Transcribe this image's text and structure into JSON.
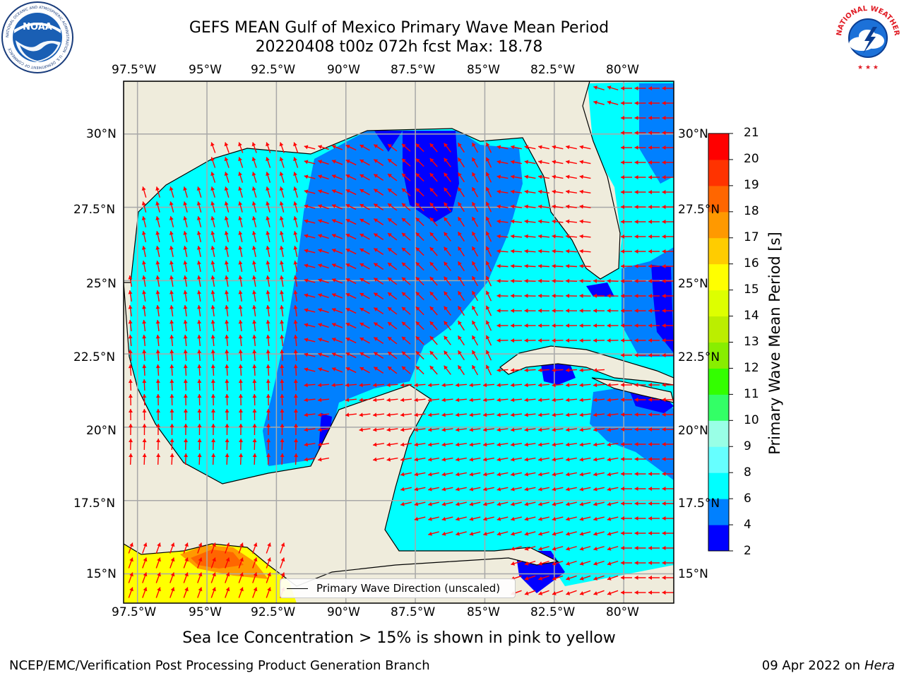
{
  "title": {
    "line1": "GEFS MEAN Gulf of Mexico Primary Wave Mean Period",
    "line2": "20220408 t00z 072h fcst   Max: 18.78"
  },
  "map": {
    "lon_range": [
      -98.0,
      -78.2
    ],
    "lat_range": [
      14.0,
      31.8
    ],
    "lon_ticks": [
      "97.5°W",
      "95°W",
      "92.5°W",
      "90°W",
      "87.5°W",
      "85°W",
      "82.5°W",
      "80°W"
    ],
    "lat_ticks": [
      "30°N",
      "27.5°N",
      "25°N",
      "22.5°N",
      "20°N",
      "17.5°N",
      "15°N"
    ],
    "grid": true,
    "land_color": "#efecdc"
  },
  "legend": {
    "label": "Primary Wave Direction (unscaled)",
    "arrow_color": "#ff0000",
    "placement": "bottom-center"
  },
  "colorbar": {
    "label": "Primary Wave Mean Period [s]",
    "ticks": [
      "2",
      "4",
      "6",
      "8",
      "9",
      "10",
      "11",
      "12",
      "13",
      "14",
      "15",
      "16",
      "17",
      "18",
      "19",
      "20",
      "21"
    ],
    "colors": [
      "#0000ff",
      "#0080ff",
      "#00ffff",
      "#66ffff",
      "#99ffe6",
      "#33ff66",
      "#33ff00",
      "#88ee00",
      "#bbee00",
      "#ddff00",
      "#ffff00",
      "#ffcc00",
      "#ff9900",
      "#ff6600",
      "#ff3300",
      "#ff0000"
    ]
  },
  "caption": "Sea Ice Concentration > 15% is shown in pink to yellow",
  "footer": {
    "left": "NCEP/EMC/Verification Post Processing Product Generation Branch",
    "date": "09 Apr 2022 on",
    "host": "Hera"
  },
  "logos": {
    "noaa_text": "NOAA",
    "noaa_ring": "NATIONAL OCEANIC AND ATMOSPHERIC ADMINISTRATION · U.S. DEPARTMENT OF COMMERCE",
    "nws_ring": "NATIONAL WEATHER SERVICE"
  }
}
